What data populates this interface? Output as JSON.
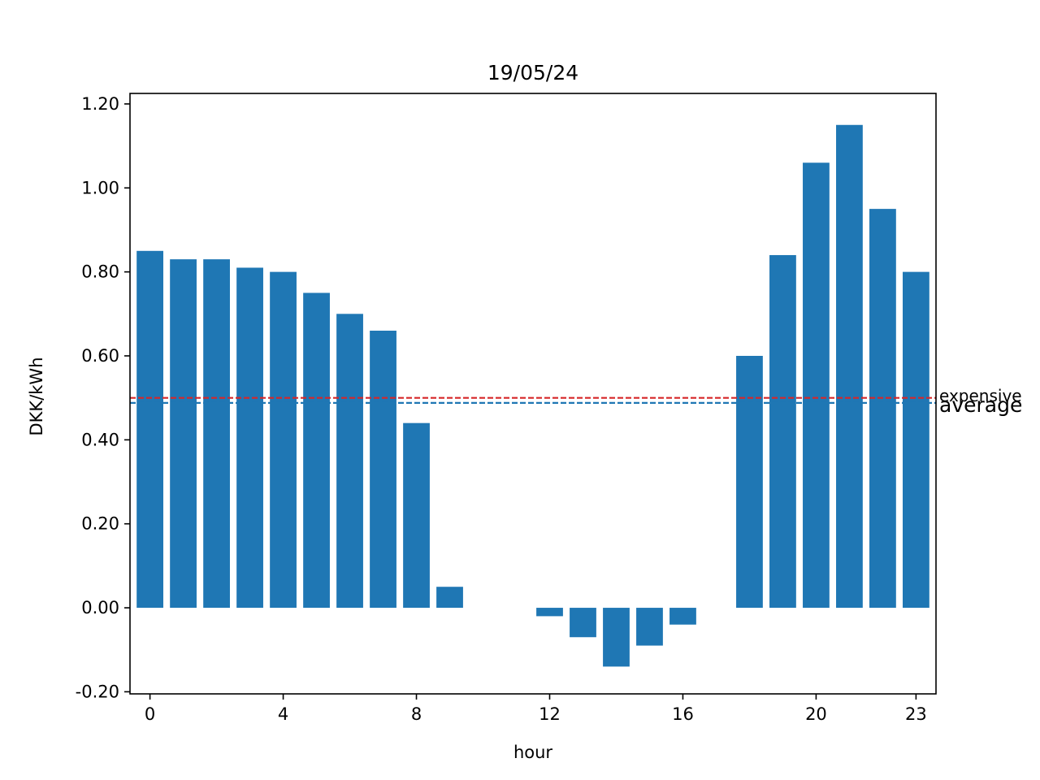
{
  "chart_data": {
    "type": "bar",
    "title": "19/05/24",
    "xlabel": "hour",
    "ylabel": "DKK/kWh",
    "categories": [
      0,
      1,
      2,
      3,
      4,
      5,
      6,
      7,
      8,
      9,
      10,
      11,
      12,
      13,
      14,
      15,
      16,
      17,
      18,
      19,
      20,
      21,
      22,
      23
    ],
    "values": [
      0.85,
      0.83,
      0.83,
      0.81,
      0.8,
      0.75,
      0.7,
      0.66,
      0.44,
      0.05,
      0,
      0,
      -0.02,
      -0.07,
      -0.14,
      -0.09,
      -0.04,
      0,
      0.6,
      0.84,
      1.06,
      1.15,
      0.95,
      0.8
    ],
    "ylim": [
      -0.205,
      1.225
    ],
    "xlim": [
      -0.6,
      23.6
    ],
    "xticks": [
      "0",
      "4",
      "8",
      "12",
      "16",
      "20",
      "23"
    ],
    "xtick_values": [
      0,
      4,
      8,
      12,
      16,
      20,
      23
    ],
    "yticks": [
      "-0.20",
      "0.00",
      "0.20",
      "0.40",
      "0.60",
      "0.80",
      "1.00",
      "1.20"
    ],
    "ytick_values": [
      -0.2,
      0,
      0.2,
      0.4,
      0.6,
      0.8,
      1.0,
      1.2
    ],
    "bar_color": "#1f77b4",
    "grid": false,
    "reference_lines": [
      {
        "label": "expensive",
        "value": 0.5,
        "color": "#d62728",
        "style": "dashed"
      },
      {
        "label": "average",
        "value": 0.488,
        "color": "#1f77b4",
        "style": "dashed"
      }
    ]
  }
}
